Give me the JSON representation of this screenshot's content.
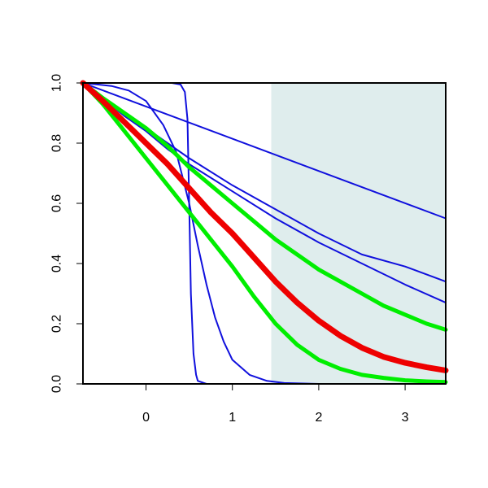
{
  "chart_data": {
    "type": "line",
    "title": "",
    "xlabel": "",
    "ylabel": "",
    "xlim": [
      -0.73,
      3.47
    ],
    "ylim": [
      0,
      1
    ],
    "grid": false,
    "legend": "none",
    "x_ticks": [
      0,
      1,
      2,
      3
    ],
    "x_tick_labels": [
      "0",
      "1",
      "2",
      "3"
    ],
    "y_ticks": [
      0,
      0.2,
      0.4,
      0.6,
      0.8,
      1
    ],
    "y_tick_labels": [
      "0.0",
      "0.2",
      "0.4",
      "0.6",
      "0.8",
      "1.0"
    ],
    "shaded_region": {
      "x_from": 1.45,
      "x_to": 3.47,
      "color": "#dfeded"
    },
    "series": [
      {
        "color": "#1010dd",
        "weight": "thin",
        "x": [
          -0.73,
          0.3,
          0.4,
          0.45,
          0.48,
          0.5,
          0.52,
          0.55,
          0.58,
          0.6,
          0.7,
          3.47
        ],
        "y": [
          1,
          1,
          0.995,
          0.97,
          0.88,
          0.6,
          0.3,
          0.1,
          0.03,
          0.01,
          0,
          0
        ]
      },
      {
        "color": "#1010dd",
        "weight": "thin",
        "x": [
          -0.73,
          -0.4,
          -0.2,
          0,
          0.2,
          0.35,
          0.5,
          0.6,
          0.7,
          0.8,
          0.9,
          1.0,
          1.2,
          1.4,
          1.6,
          2.0,
          3.47
        ],
        "y": [
          1,
          0.99,
          0.975,
          0.94,
          0.86,
          0.77,
          0.6,
          0.46,
          0.33,
          0.22,
          0.14,
          0.08,
          0.03,
          0.01,
          0.003,
          0,
          0
        ]
      },
      {
        "color": "#1010dd",
        "weight": "thin",
        "x": [
          -0.73,
          -0.5,
          -0.25,
          0,
          0.25,
          0.5,
          1,
          1.5,
          2,
          2.5,
          3,
          3.47
        ],
        "y": [
          1,
          0.95,
          0.89,
          0.84,
          0.78,
          0.73,
          0.64,
          0.55,
          0.47,
          0.4,
          0.33,
          0.27
        ]
      },
      {
        "color": "#1010dd",
        "weight": "thin",
        "x": [
          -0.73,
          0,
          0.5,
          1,
          1.5,
          2,
          2.5,
          3,
          3.47
        ],
        "y": [
          1,
          0.85,
          0.75,
          0.66,
          0.58,
          0.5,
          0.43,
          0.39,
          0.34
        ]
      },
      {
        "color": "#1010dd",
        "weight": "thin",
        "x": [
          -0.73,
          3.47
        ],
        "y": [
          1,
          0.55
        ]
      },
      {
        "color": "#00ee00",
        "weight": "thick",
        "x": [
          -0.73,
          -0.5,
          -0.25,
          0,
          0.25,
          0.5,
          0.75,
          1,
          1.25,
          1.5,
          1.75,
          2,
          2.25,
          2.5,
          2.75,
          3,
          3.25,
          3.47
        ],
        "y": [
          1,
          0.95,
          0.9,
          0.85,
          0.79,
          0.72,
          0.66,
          0.6,
          0.54,
          0.48,
          0.43,
          0.38,
          0.34,
          0.3,
          0.26,
          0.23,
          0.2,
          0.18
        ]
      },
      {
        "color": "#00ee00",
        "weight": "thick",
        "x": [
          -0.73,
          -0.5,
          -0.25,
          0,
          0.25,
          0.5,
          0.75,
          1,
          1.25,
          1.5,
          1.75,
          2,
          2.25,
          2.5,
          2.75,
          3,
          3.25,
          3.47
        ],
        "y": [
          1,
          0.93,
          0.84,
          0.75,
          0.66,
          0.57,
          0.48,
          0.39,
          0.29,
          0.2,
          0.13,
          0.08,
          0.05,
          0.03,
          0.02,
          0.012,
          0.008,
          0.006
        ]
      },
      {
        "color": "#ee0000",
        "weight": "heavy",
        "x": [
          -0.73,
          -0.5,
          -0.25,
          0,
          0.25,
          0.5,
          0.75,
          1,
          1.25,
          1.5,
          1.75,
          2,
          2.25,
          2.5,
          2.75,
          3,
          3.25,
          3.47
        ],
        "y": [
          1,
          0.94,
          0.87,
          0.8,
          0.73,
          0.65,
          0.57,
          0.5,
          0.42,
          0.34,
          0.27,
          0.21,
          0.16,
          0.12,
          0.09,
          0.07,
          0.055,
          0.045
        ]
      }
    ]
  }
}
